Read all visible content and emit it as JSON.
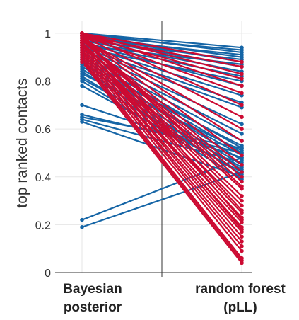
{
  "chart_data": {
    "type": "line",
    "title": "",
    "ylabel": "top ranked contacts",
    "xlabel": "",
    "categories": [
      "Bayesian posterior",
      "random forest (pLL)"
    ],
    "category_lines": [
      [
        "Bayesian",
        "posterior"
      ],
      [
        "random forest",
        "(pLL)"
      ]
    ],
    "ylim": [
      0,
      1.05
    ],
    "yticks": [
      0,
      0.2,
      0.4,
      0.6,
      0.8,
      1
    ],
    "ytick_labels": [
      "0",
      "0.2",
      "0.4",
      "0.6",
      "0.8",
      "1"
    ],
    "grid": true,
    "colors": {
      "blue": "#1565a6",
      "red": "#cc0a32",
      "grid": "#e6e6e6",
      "axis": "#333333"
    },
    "series": [
      {
        "color": "blue",
        "pairs": [
          [
            1.0,
            0.94
          ],
          [
            1.0,
            0.92
          ],
          [
            0.99,
            0.93
          ],
          [
            0.99,
            0.9
          ],
          [
            0.99,
            0.88
          ],
          [
            0.98,
            0.91
          ],
          [
            0.98,
            0.86
          ],
          [
            0.97,
            0.89
          ],
          [
            0.97,
            0.84
          ],
          [
            0.96,
            0.82
          ],
          [
            0.96,
            0.78
          ],
          [
            0.95,
            0.87
          ],
          [
            0.95,
            0.74
          ],
          [
            0.94,
            0.8
          ],
          [
            0.94,
            0.71
          ],
          [
            0.93,
            0.69
          ],
          [
            0.93,
            0.62
          ],
          [
            0.92,
            0.58
          ],
          [
            0.91,
            0.55
          ],
          [
            0.9,
            0.52
          ],
          [
            0.89,
            0.5
          ],
          [
            0.88,
            0.47
          ],
          [
            0.87,
            0.53
          ],
          [
            0.86,
            0.49
          ],
          [
            0.85,
            0.45
          ],
          [
            0.84,
            0.43
          ],
          [
            0.83,
            0.51
          ],
          [
            0.82,
            0.41
          ],
          [
            0.81,
            0.44
          ],
          [
            0.8,
            0.39
          ],
          [
            0.78,
            0.42
          ],
          [
            0.7,
            0.48
          ],
          [
            0.66,
            0.5
          ],
          [
            0.65,
            0.52
          ],
          [
            0.64,
            0.46
          ],
          [
            0.63,
            0.4
          ],
          [
            0.22,
            0.48
          ],
          [
            0.19,
            0.42
          ]
        ]
      },
      {
        "color": "red",
        "pairs": [
          [
            1.0,
            0.88
          ],
          [
            1.0,
            0.83
          ],
          [
            1.0,
            0.78
          ],
          [
            1.0,
            0.7
          ],
          [
            0.99,
            0.86
          ],
          [
            0.99,
            0.81
          ],
          [
            0.99,
            0.75
          ],
          [
            0.99,
            0.65
          ],
          [
            0.98,
            0.6
          ],
          [
            0.98,
            0.55
          ],
          [
            0.98,
            0.49
          ],
          [
            0.97,
            0.45
          ],
          [
            0.97,
            0.42
          ],
          [
            0.97,
            0.38
          ],
          [
            0.96,
            0.35
          ],
          [
            0.96,
            0.32
          ],
          [
            0.96,
            0.3
          ],
          [
            0.95,
            0.28
          ],
          [
            0.95,
            0.25
          ],
          [
            0.95,
            0.23
          ],
          [
            0.94,
            0.21
          ],
          [
            0.94,
            0.19
          ],
          [
            0.93,
            0.17
          ],
          [
            0.93,
            0.15
          ],
          [
            0.92,
            0.13
          ],
          [
            0.92,
            0.11
          ],
          [
            0.91,
            0.09
          ],
          [
            0.9,
            0.06
          ],
          [
            0.89,
            0.05
          ],
          [
            0.88,
            0.04
          ],
          [
            0.97,
            0.4
          ],
          [
            0.98,
            0.36
          ],
          [
            0.99,
            0.26
          ],
          [
            1.0,
            0.22
          ],
          [
            0.96,
            0.18
          ]
        ]
      }
    ]
  }
}
